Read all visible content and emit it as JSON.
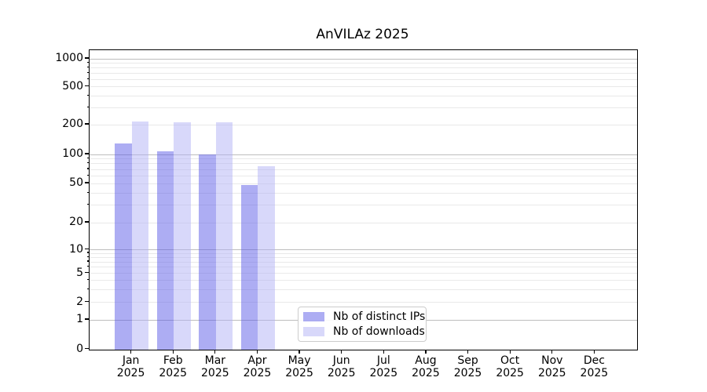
{
  "chart_data": {
    "type": "bar",
    "title": "AnVILAz 2025",
    "x_months": [
      "Jan",
      "Feb",
      "Mar",
      "Apr",
      "May",
      "Jun",
      "Jul",
      "Aug",
      "Sep",
      "Oct",
      "Nov",
      "Dec"
    ],
    "x_year": "2025",
    "series": [
      {
        "name": "Nb of distinct IPs",
        "color": "rgba(92,92,232,0.5)",
        "values": [
          128,
          107,
          100,
          48,
          0,
          0,
          0,
          0,
          0,
          0,
          0,
          0
        ]
      },
      {
        "name": "Nb of downloads",
        "color": "rgba(178,178,246,0.5)",
        "values": [
          215,
          212,
          210,
          76,
          0,
          0,
          0,
          0,
          0,
          0,
          0,
          0
        ]
      }
    ],
    "yaxis": {
      "scale": "asinh",
      "tick_values": [
        0,
        1,
        2,
        5,
        10,
        20,
        50,
        100,
        200,
        500,
        1000
      ],
      "tick_labels": [
        "0",
        "1",
        "2",
        "5",
        "10",
        "20",
        "50",
        "100",
        "200",
        "500",
        "1000"
      ],
      "strong_gridlines": [
        1,
        10,
        100,
        1000
      ],
      "minor_gridlines": [
        3,
        4,
        6,
        7,
        8,
        9,
        30,
        40,
        60,
        70,
        80,
        90,
        300,
        400,
        600,
        700,
        800,
        900
      ],
      "ylim": [
        0,
        1250
      ]
    },
    "legend": {
      "position": "lower center"
    },
    "grid": "on"
  },
  "colors": {
    "major_grid": "#bdbdbd",
    "minor_grid": "#e9e9e9",
    "spine": "#000000",
    "text": "#000000",
    "background": "#ffffff"
  }
}
